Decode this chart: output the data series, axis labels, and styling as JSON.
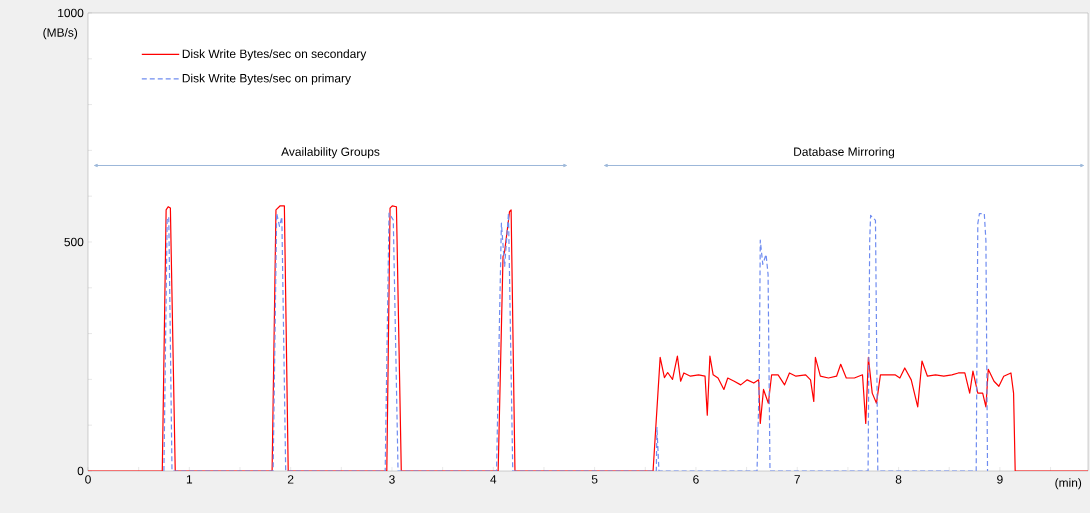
{
  "chart_data": {
    "type": "line",
    "xlabel": "(min)",
    "ylabel": "(MB/s)",
    "xlim": [
      0,
      9.87
    ],
    "ylim": [
      0,
      1000
    ],
    "xticks": [
      0,
      {
        "value": 0.5,
        "label": null
      },
      1,
      {
        "value": 1.5,
        "label": null
      },
      2,
      {
        "value": 2.5,
        "label": null
      },
      3,
      {
        "value": 3.5,
        "label": null
      },
      4,
      {
        "value": 4.5,
        "label": null
      },
      5,
      {
        "value": 5.5,
        "label": null
      },
      6,
      {
        "value": 6.5,
        "label": null
      },
      7,
      {
        "value": 7.5,
        "label": null
      },
      8,
      {
        "value": 8.5,
        "label": null
      },
      9,
      {
        "value": 9.5,
        "label": null
      }
    ],
    "yticks": [
      0,
      {
        "value": 100,
        "label": null
      },
      {
        "value": 200,
        "label": null
      },
      {
        "value": 300,
        "label": null
      },
      {
        "value": 400,
        "label": null
      },
      500,
      {
        "value": 600,
        "label": null
      },
      {
        "value": 700,
        "label": null
      },
      {
        "value": 800,
        "label": null
      },
      {
        "value": 900,
        "label": null
      },
      1000
    ],
    "grid": false,
    "legend": "top left",
    "marker": "none",
    "annotations": [
      "Availability Groups",
      "Database Mirroring"
    ],
    "series": [
      {
        "name": "Disk Write Bytes/sec on secondary",
        "color": "#ff0000",
        "line_style": "solid",
        "x": [
          0,
          0.733,
          0.771,
          0.791,
          0.813,
          0.861,
          1.817,
          1.855,
          1.897,
          1.938,
          1.976,
          2.949,
          2.981,
          3.003,
          3.044,
          3.092,
          4.048,
          4.096,
          4.112,
          4.16,
          4.176,
          4.214,
          5.577,
          5.625,
          5.647,
          5.689,
          5.721,
          5.769,
          5.817,
          5.849,
          5.881,
          5.946,
          6.026,
          6.09,
          6.112,
          6.138,
          6.17,
          6.218,
          6.276,
          6.314,
          6.378,
          6.442,
          6.506,
          6.571,
          6.619,
          6.635,
          6.667,
          6.715,
          6.747,
          6.811,
          6.875,
          6.923,
          6.987,
          7.083,
          7.131,
          7.163,
          7.179,
          7.228,
          7.308,
          7.388,
          7.429,
          7.484,
          7.564,
          7.644,
          7.676,
          7.702,
          7.74,
          7.782,
          7.821,
          7.885,
          7.965,
          8.013,
          8.061,
          8.125,
          8.189,
          8.231,
          8.285,
          8.365,
          8.446,
          8.526,
          8.59,
          8.654,
          8.702,
          8.734,
          8.782,
          8.83,
          8.862,
          8.885,
          8.942,
          8.99,
          9.038,
          9.109,
          9.135,
          9.151,
          9.87
        ],
        "values": [
          0,
          0,
          570,
          577,
          574,
          0,
          0,
          570,
          579,
          579,
          0,
          0,
          574,
          579,
          577,
          0,
          0,
          468,
          479,
          566,
          570,
          0,
          0,
          170,
          248,
          204,
          215,
          200,
          251,
          196,
          214,
          207,
          210,
          207,
          122,
          251,
          210,
          203,
          178,
          203,
          196,
          188,
          199,
          192,
          199,
          104,
          178,
          148,
          210,
          210,
          188,
          214,
          207,
          210,
          199,
          152,
          248,
          207,
          203,
          207,
          233,
          203,
          203,
          210,
          104,
          248,
          170,
          148,
          210,
          210,
          210,
          203,
          225,
          199,
          140,
          240,
          207,
          210,
          207,
          210,
          214,
          214,
          170,
          218,
          170,
          170,
          140,
          222,
          196,
          185,
          207,
          214,
          170,
          0,
          0
        ]
      },
      {
        "name": "Disk Write Bytes/sec on primary",
        "color": "#6f8cf0",
        "line_style": "dashed",
        "x": [
          0.749,
          0.781,
          0.797,
          0.829,
          1.827,
          1.862,
          1.89,
          1.913,
          1.951,
          2.933,
          2.971,
          3.013,
          3.06,
          4.032,
          4.08,
          4.112,
          4.15,
          4.192,
          5.609,
          5.615,
          5.635,
          6.603,
          6.625,
          6.635,
          6.66,
          6.692,
          6.712,
          6.731,
          7.699,
          7.715,
          7.724,
          7.756,
          7.772,
          7.795,
          8.766,
          8.782,
          8.798,
          8.846,
          8.862,
          8.878
        ],
        "values": [
          0,
          548,
          555,
          0,
          0,
          563,
          534,
          555,
          0,
          0,
          563,
          548,
          0,
          0,
          541,
          446,
          563,
          0,
          0,
          96,
          0,
          0,
          200,
          504,
          451,
          473,
          429,
          0,
          0,
          503,
          558,
          551,
          547,
          0,
          0,
          540,
          562,
          562,
          503,
          0
        ]
      }
    ]
  }
}
